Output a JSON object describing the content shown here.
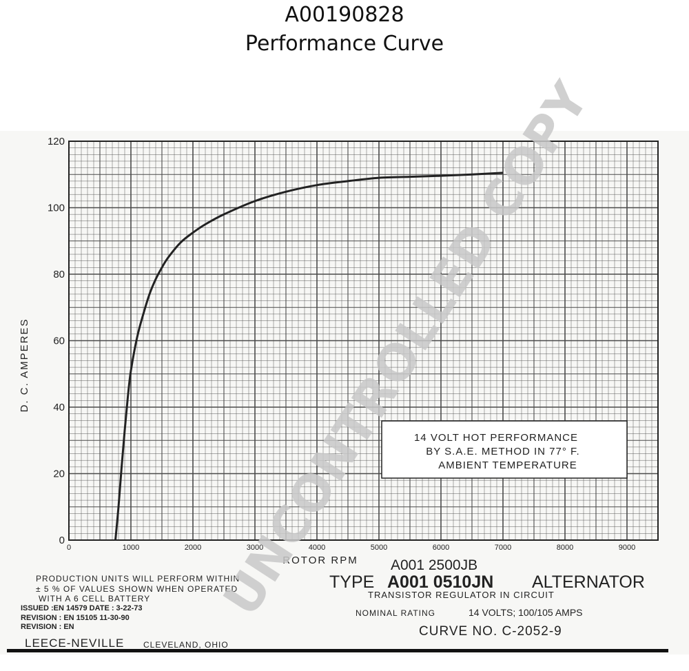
{
  "header": {
    "part_number": "A00190828",
    "subtitle": "Performance Curve"
  },
  "chart_data": {
    "type": "line",
    "title": "",
    "xlabel": "ROTOR RPM",
    "ylabel": "D. C. AMPERES",
    "xlim": [
      0,
      9500
    ],
    "ylim": [
      0,
      120
    ],
    "x_ticks": [
      "0",
      "1000",
      "2000",
      "3000",
      "4000",
      "5000",
      "6000",
      "7000",
      "8000",
      "9000"
    ],
    "y_ticks": [
      "0",
      "20",
      "40",
      "60",
      "80",
      "100",
      "120"
    ],
    "grid": true,
    "series": [
      {
        "x": [
          750,
          800,
          850,
          900,
          950,
          1000,
          1100,
          1200,
          1300,
          1400,
          1500,
          1600,
          1800,
          2000,
          2200,
          2500,
          3000,
          3500,
          4000,
          4500,
          5000,
          5500,
          6000,
          6500,
          7000
        ],
        "values": [
          0,
          10,
          22,
          33,
          43,
          51,
          61,
          68,
          74,
          78.5,
          82,
          85,
          89.5,
          92.5,
          95,
          98,
          102,
          104.8,
          106.8,
          108,
          109,
          109.3,
          109.6,
          110,
          110.5
        ]
      }
    ]
  },
  "notes": {
    "box_line1": "14 VOLT HOT PERFORMANCE",
    "box_line2": "BY S.A.E. METHOD IN 77° F.",
    "box_line3": "AMBIENT TEMPERATURE",
    "production_line1": "PRODUCTION UNITS WILL PERFORM WITHIN",
    "production_line2": "± 5 % OF VALUES SHOWN WHEN OPERATED",
    "production_line3": "WITH A 6 CELL BATTERY",
    "issued": "ISSUED :EN 14579  DATE : 3-22-73",
    "revision1": "REVISION : EN 15105        11-30-90",
    "revision2": "REVISION : EN",
    "company": "LEECE-NEVILLE",
    "city": "CLEVELAND, OHIO",
    "model_alt": "A001 2500JB",
    "type_prefix": "TYPE",
    "type_model": "A001 0510JN",
    "type_suffix": "ALTERNATOR",
    "regulator": "TRANSISTOR REGULATOR IN CIRCUIT",
    "rating_label": "NOMINAL RATING",
    "rating_value": "14 VOLTS; 100/105 AMPS",
    "curve_no": "CURVE NO. C-2052-9"
  },
  "watermark": "UNCONTROLLED COPY",
  "colors": {
    "grid": "#4a4a4a",
    "curve": "#222222",
    "watermark": "#c8c8c8"
  }
}
